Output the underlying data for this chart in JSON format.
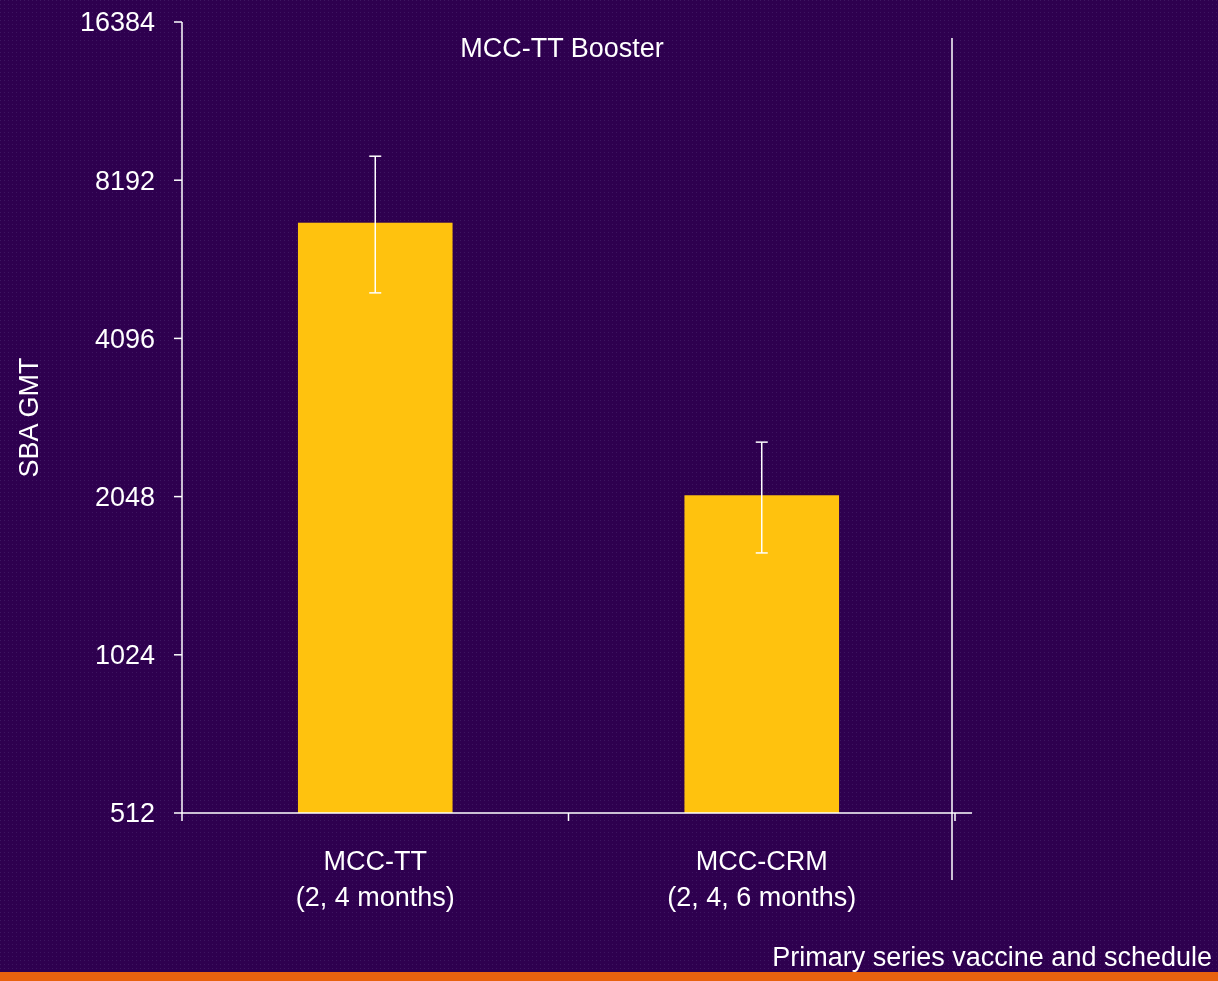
{
  "chart_data": {
    "type": "bar",
    "title": "MCC-TT Booster",
    "xlabel": "Primary series vaccine and schedule",
    "ylabel": "SBA GMT",
    "categories": [
      "MCC-TT\n(2, 4 months)",
      "MCC-CRM\n(2, 4, 6 months)"
    ],
    "values": [
      6800,
      2060
    ],
    "errors": [
      [
        5000,
        9100
      ],
      [
        1600,
        2600
      ]
    ],
    "color": "#ffc20e",
    "log": true,
    "ylim": [
      512,
      16384
    ],
    "yticks": [
      512,
      1024,
      2048,
      4096,
      8192,
      16384
    ],
    "grid": false
  }
}
